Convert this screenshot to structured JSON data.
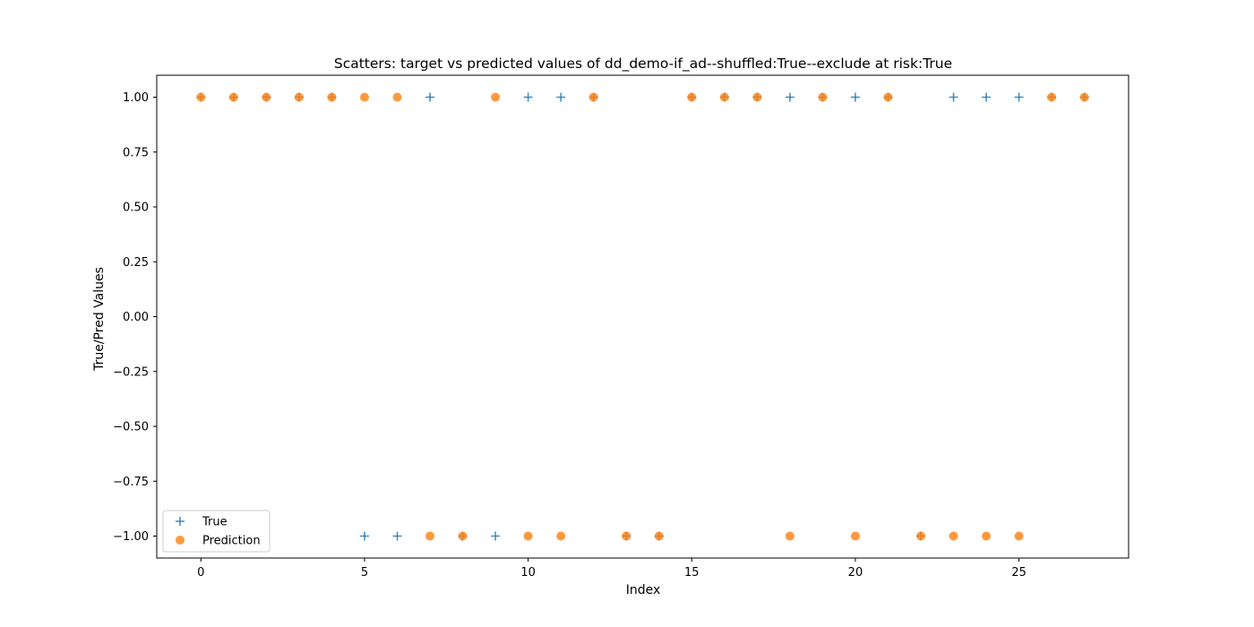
{
  "chart_data": {
    "type": "scatter",
    "title": "Scatters: target vs predicted values of dd_demo-if_ad--shuffled:True--exclude at risk:True",
    "xlabel": "Index",
    "ylabel": "True/Pred Values",
    "xlim": [
      -1.35,
      28.35
    ],
    "ylim": [
      -1.1,
      1.1
    ],
    "xticks": [
      0,
      5,
      10,
      15,
      20,
      25
    ],
    "yticks": [
      1.0,
      0.75,
      0.5,
      0.25,
      0.0,
      -0.25,
      -0.5,
      -0.75,
      -1.0
    ],
    "xtick_labels": [
      "0",
      "5",
      "10",
      "15",
      "20",
      "25"
    ],
    "ytick_labels": [
      "1.00",
      "0.75",
      "0.50",
      "0.25",
      "0.00",
      "−0.25",
      "−0.50",
      "−0.75",
      "−1.00"
    ],
    "grid": false,
    "legend_position": "bottom-left",
    "series": [
      {
        "name": "True",
        "marker": "plus",
        "color": "#1f77b4",
        "x": [
          0,
          1,
          2,
          3,
          4,
          5,
          6,
          7,
          8,
          9,
          10,
          11,
          12,
          13,
          14,
          15,
          16,
          17,
          18,
          19,
          20,
          21,
          22,
          23,
          24,
          25,
          26,
          27
        ],
        "y": [
          1,
          1,
          1,
          1,
          1,
          -1,
          -1,
          1,
          -1,
          -1,
          1,
          1,
          1,
          -1,
          -1,
          1,
          1,
          1,
          1,
          1,
          1,
          1,
          -1,
          1,
          1,
          1,
          1,
          1
        ]
      },
      {
        "name": "Prediction",
        "marker": "circle",
        "color": "#ff7f0e",
        "x": [
          0,
          1,
          2,
          3,
          4,
          5,
          6,
          7,
          8,
          9,
          10,
          11,
          12,
          13,
          14,
          15,
          16,
          17,
          18,
          19,
          20,
          21,
          22,
          23,
          24,
          25,
          26,
          27
        ],
        "y": [
          1,
          1,
          1,
          1,
          1,
          1,
          1,
          -1,
          -1,
          1,
          -1,
          -1,
          1,
          -1,
          -1,
          1,
          1,
          1,
          -1,
          1,
          -1,
          1,
          -1,
          -1,
          -1,
          -1,
          1,
          1
        ]
      }
    ]
  }
}
